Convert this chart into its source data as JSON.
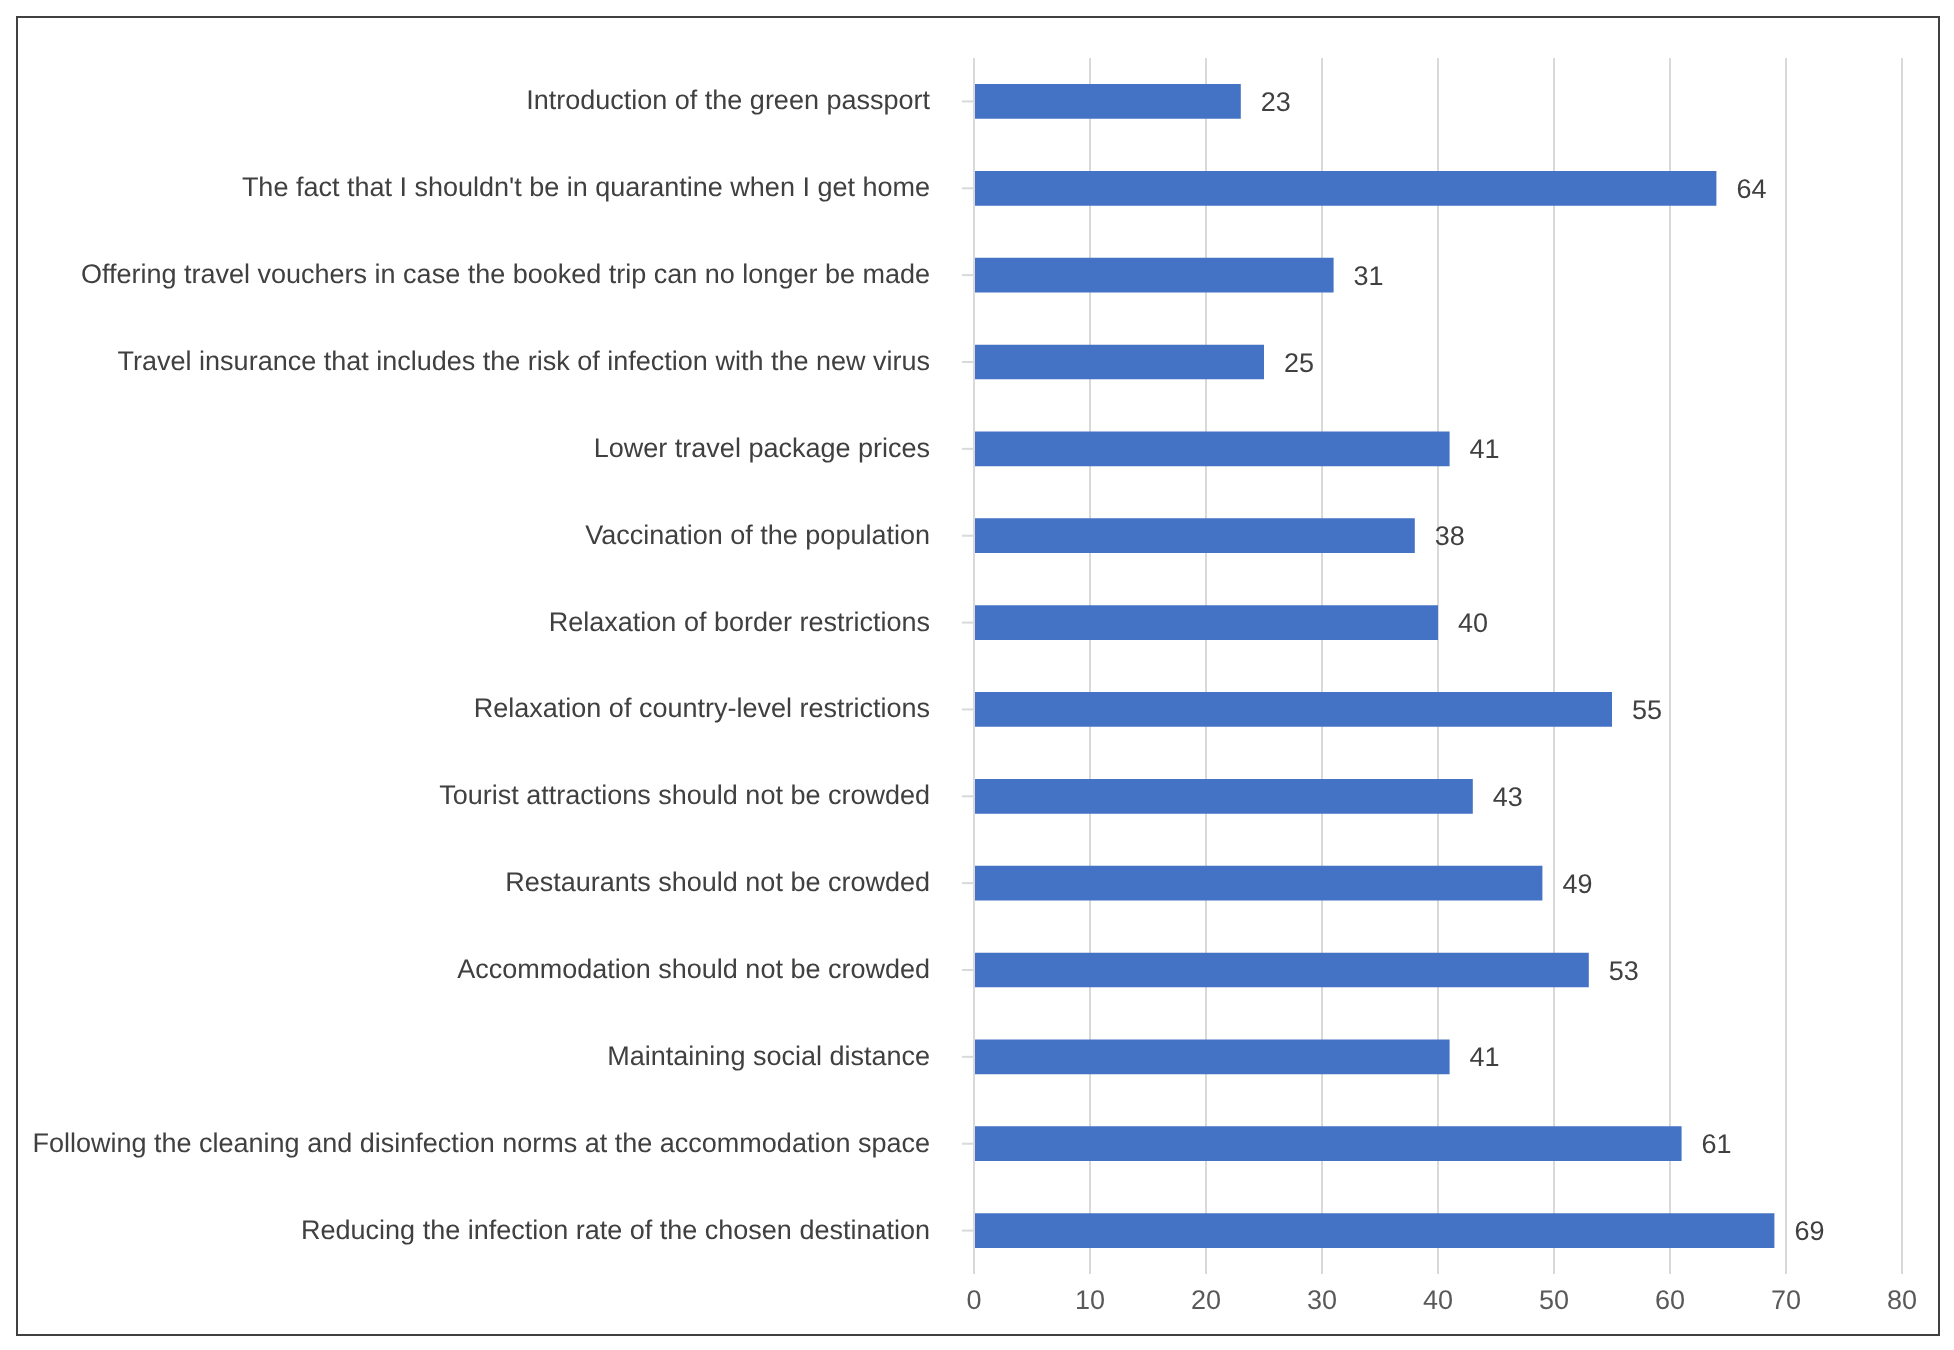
{
  "chart_data": {
    "type": "bar",
    "orientation": "horizontal",
    "categories": [
      "Introduction of the green passport",
      "The fact that I shouldn't be in quarantine when I get home",
      "Offering travel vouchers in case the booked trip can no longer be made",
      "Travel insurance that includes the risk of infection with the new virus",
      "Lower travel package prices",
      "Vaccination of the population",
      "Relaxation of border restrictions",
      "Relaxation of country-level restrictions",
      "Tourist attractions should not be crowded",
      "Restaurants should not be crowded",
      "Accommodation should not be crowded",
      "Maintaining social distance",
      "Following the cleaning and disinfection norms at the accommodation space",
      "Reducing the infection rate of the chosen destination"
    ],
    "values": [
      23,
      64,
      31,
      25,
      41,
      38,
      40,
      55,
      43,
      49,
      53,
      41,
      61,
      69
    ],
    "color": "#4472c4",
    "xlim": [
      0,
      80
    ],
    "xticks": [
      0,
      10,
      20,
      30,
      40,
      50,
      60,
      70,
      80
    ],
    "grid": "x",
    "data_labels": true
  }
}
